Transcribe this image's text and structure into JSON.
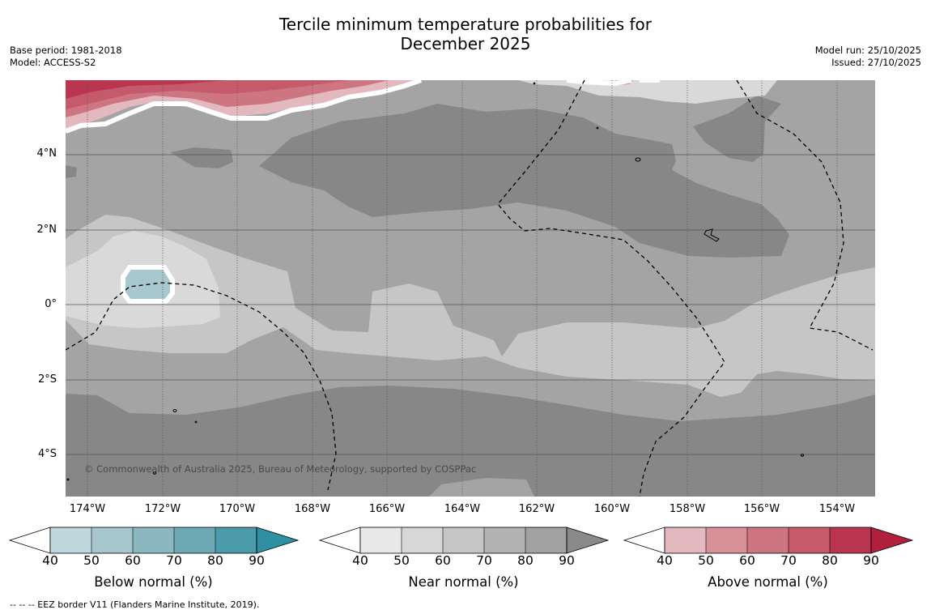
{
  "title_line1": "Tercile minimum temperature probabilities for",
  "title_line2": "December 2025",
  "base_period": "Base period: 1981-2018",
  "model": "Model: ACCESS-S2",
  "model_run": "Model run: 25/10/2025",
  "issued": "Issued: 27/10/2025",
  "map": {
    "latitude_labels": [
      "4°N",
      "2°N",
      "0°",
      "2°S",
      "4°S"
    ],
    "longitude_labels": [
      "174°W",
      "172°W",
      "170°W",
      "168°W",
      "166°W",
      "164°W",
      "162°W",
      "160°W",
      "158°W",
      "156°W",
      "154°W"
    ],
    "copyright": "© Commonwealth of Australia 2025, Bureau of Meteorology, supported by COSPPac",
    "colors": {
      "near_60_70": "#c6c6c6",
      "near_70_80": "#a4a4a4",
      "near_80_90": "#878787",
      "near_50_60": "#d9d9d9",
      "above_high": "#b82a45",
      "below_50_60": "#a7c8cf"
    }
  },
  "colorbars": [
    {
      "title": "Below normal (%)",
      "ticks": [
        "40",
        "50",
        "60",
        "70",
        "80",
        "90"
      ],
      "colors": [
        "#c0d6dd",
        "#a6c7cd",
        "#8bb8c0",
        "#6ea9b6",
        "#4b9bab",
        "#2f8fa3"
      ]
    },
    {
      "title": "Near normal (%)",
      "ticks": [
        "40",
        "50",
        "60",
        "70",
        "80",
        "90"
      ],
      "colors": [
        "#e8e8e8",
        "#d7d7d7",
        "#c6c6c6",
        "#b3b3b3",
        "#a2a2a2",
        "#8a8a8a"
      ]
    },
    {
      "title": "Above normal (%)",
      "ticks": [
        "40",
        "50",
        "60",
        "70",
        "80",
        "90"
      ],
      "colors": [
        "#e3b8bf",
        "#d89099",
        "#cd7580",
        "#c45a6a",
        "#b93550",
        "#b0203d"
      ]
    }
  ],
  "footer": "--  --  -- EEZ border V11 (Flanders Marine Institute, 2019)."
}
